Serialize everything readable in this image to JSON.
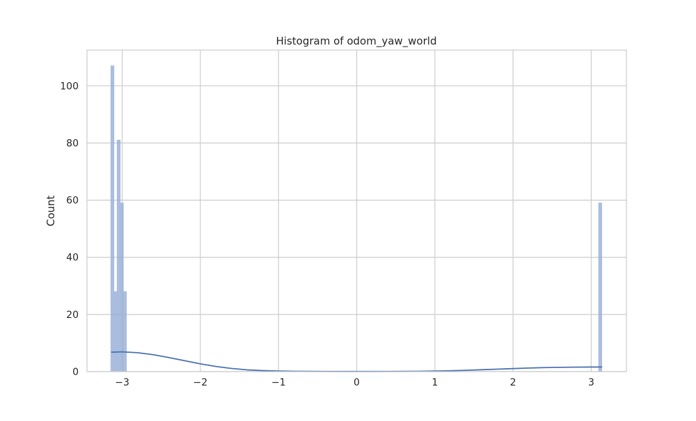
{
  "chart_data": {
    "type": "histogram",
    "title": "Histogram of odom_yaw_world",
    "xlabel": "",
    "ylabel": "Count",
    "xlim": [
      -3.45,
      3.45
    ],
    "ylim": [
      0,
      112.5
    ],
    "xticks": [
      -3,
      -2,
      -1,
      0,
      1,
      2,
      3
    ],
    "xtick_labels": [
      "−3",
      "−2",
      "−1",
      "0",
      "1",
      "2",
      "3"
    ],
    "yticks": [
      0,
      20,
      40,
      60,
      80,
      100
    ],
    "ytick_labels": [
      "0",
      "20",
      "40",
      "60",
      "80",
      "100"
    ],
    "grid": true,
    "bins": [
      {
        "x0": -3.145,
        "x1": -3.105,
        "count": 107
      },
      {
        "x0": -3.105,
        "x1": -3.065,
        "count": 28
      },
      {
        "x0": -3.065,
        "x1": -3.025,
        "count": 81
      },
      {
        "x0": -3.025,
        "x1": -2.985,
        "count": 59
      },
      {
        "x0": -2.985,
        "x1": -2.945,
        "count": 28
      },
      {
        "x0": 3.095,
        "x1": 3.135,
        "count": 59
      }
    ],
    "kde": {
      "x": [
        -3.14,
        -3.0,
        -2.8,
        -2.6,
        -2.4,
        -2.2,
        -2.0,
        -1.8,
        -1.6,
        -1.4,
        -1.2,
        -1.0,
        -0.8,
        -0.6,
        -0.4,
        -0.2,
        0.0,
        0.2,
        0.4,
        0.6,
        0.8,
        1.0,
        1.2,
        1.4,
        1.6,
        1.8,
        2.0,
        2.2,
        2.4,
        2.6,
        2.8,
        3.0,
        3.14
      ],
      "y": [
        6.8,
        6.9,
        6.6,
        5.9,
        4.9,
        3.8,
        2.7,
        1.8,
        1.1,
        0.6,
        0.35,
        0.2,
        0.12,
        0.08,
        0.06,
        0.05,
        0.05,
        0.05,
        0.06,
        0.08,
        0.12,
        0.2,
        0.3,
        0.45,
        0.65,
        0.85,
        1.05,
        1.25,
        1.4,
        1.5,
        1.55,
        1.6,
        1.6
      ]
    },
    "colors": {
      "bar_fill": "#8fa8d4",
      "bar_stroke": "#a8bbdd",
      "kde_line": "#4c72b0",
      "grid": "#cccccc",
      "axes_edge": "#cccccc"
    }
  }
}
